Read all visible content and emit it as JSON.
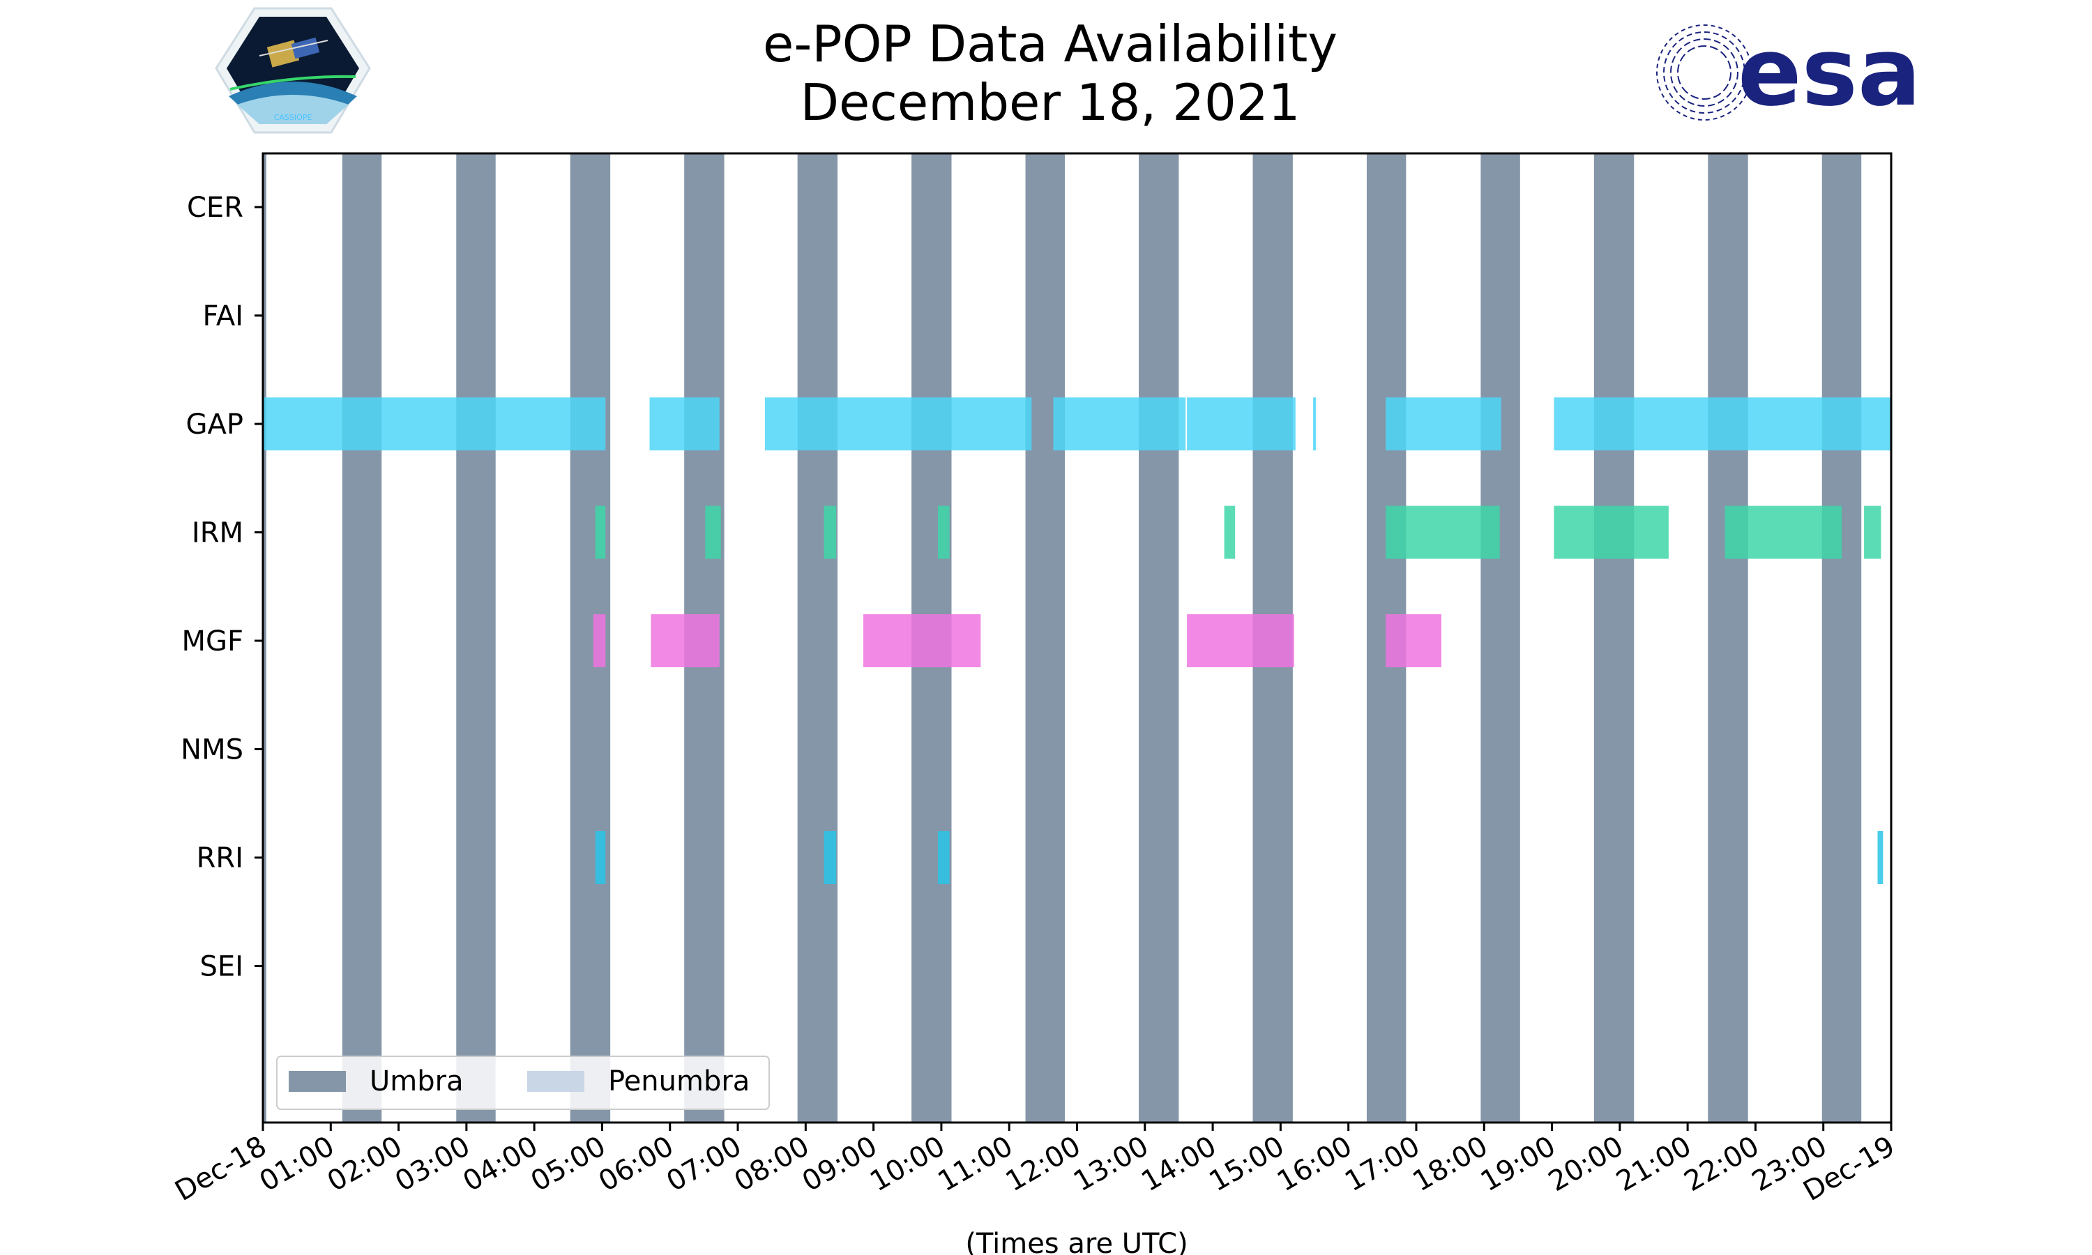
{
  "chart_data": {
    "type": "timeline",
    "title": [
      "e-POP Data Availability",
      "December 18, 2021"
    ],
    "xlabel": "(Times are UTC)",
    "ylabel": "",
    "x_unit": "hours UTC",
    "xlim": [
      0,
      24
    ],
    "x_ticks": [
      {
        "value": 0,
        "label": "Dec-18"
      },
      {
        "value": 1,
        "label": "01:00"
      },
      {
        "value": 2,
        "label": "02:00"
      },
      {
        "value": 3,
        "label": "03:00"
      },
      {
        "value": 4,
        "label": "04:00"
      },
      {
        "value": 5,
        "label": "05:00"
      },
      {
        "value": 6,
        "label": "06:00"
      },
      {
        "value": 7,
        "label": "07:00"
      },
      {
        "value": 8,
        "label": "08:00"
      },
      {
        "value": 9,
        "label": "09:00"
      },
      {
        "value": 10,
        "label": "10:00"
      },
      {
        "value": 11,
        "label": "11:00"
      },
      {
        "value": 12,
        "label": "12:00"
      },
      {
        "value": 13,
        "label": "13:00"
      },
      {
        "value": 14,
        "label": "14:00"
      },
      {
        "value": 15,
        "label": "15:00"
      },
      {
        "value": 16,
        "label": "16:00"
      },
      {
        "value": 17,
        "label": "17:00"
      },
      {
        "value": 18,
        "label": "18:00"
      },
      {
        "value": 19,
        "label": "19:00"
      },
      {
        "value": 20,
        "label": "20:00"
      },
      {
        "value": 21,
        "label": "21:00"
      },
      {
        "value": 22,
        "label": "22:00"
      },
      {
        "value": 23,
        "label": "23:00"
      },
      {
        "value": 24,
        "label": "Dec-19"
      }
    ],
    "categories": [
      "CER",
      "FAI",
      "GAP",
      "IRM",
      "MGF",
      "NMS",
      "RRI",
      "SEI"
    ],
    "umbra": [
      [
        0.0,
        0.05
      ],
      [
        1.17,
        1.75
      ],
      [
        2.85,
        3.43
      ],
      [
        4.53,
        5.12
      ],
      [
        6.21,
        6.8
      ],
      [
        7.88,
        8.47
      ],
      [
        9.56,
        10.15
      ],
      [
        11.24,
        11.82
      ],
      [
        12.91,
        13.5
      ],
      [
        14.59,
        15.18
      ],
      [
        16.27,
        16.85
      ],
      [
        17.95,
        18.53
      ],
      [
        19.62,
        20.21
      ],
      [
        21.3,
        21.89
      ],
      [
        22.98,
        23.56
      ]
    ],
    "legend": {
      "placement": "lower-left",
      "entries": [
        {
          "label": "Umbra",
          "color": "#8596a8"
        },
        {
          "label": "Penumbra",
          "color": "#c8d6e6"
        }
      ]
    },
    "series": [
      {
        "instrument": "CER",
        "color": "#4dd6f7",
        "segments": []
      },
      {
        "instrument": "FAI",
        "color": "#4dd6f7",
        "segments": []
      },
      {
        "instrument": "GAP",
        "color": "#4dd6f7",
        "segments": [
          [
            0.0,
            5.05
          ],
          [
            5.7,
            6.73
          ],
          [
            7.4,
            11.33
          ],
          [
            11.65,
            13.6
          ],
          [
            13.62,
            15.22
          ],
          [
            15.48,
            15.52
          ],
          [
            16.55,
            18.25
          ],
          [
            19.03,
            22.7
          ],
          [
            22.7,
            24.0
          ]
        ]
      },
      {
        "instrument": "IRM",
        "color": "#3ed6a8",
        "segments": [
          [
            4.9,
            5.05
          ],
          [
            6.52,
            6.75
          ],
          [
            8.27,
            8.45
          ],
          [
            9.95,
            10.12
          ],
          [
            14.17,
            14.33
          ],
          [
            16.55,
            18.23
          ],
          [
            19.03,
            20.72
          ],
          [
            21.55,
            23.27
          ],
          [
            23.6,
            23.85
          ]
        ]
      },
      {
        "instrument": "MGF",
        "color": "#ee74e0",
        "segments": [
          [
            4.87,
            5.05
          ],
          [
            5.72,
            6.73
          ],
          [
            8.85,
            10.58
          ],
          [
            13.62,
            15.2
          ],
          [
            16.55,
            17.37
          ]
        ]
      },
      {
        "instrument": "NMS",
        "color": "#29c4e6",
        "segments": []
      },
      {
        "instrument": "RRI",
        "color": "#29c4e6",
        "segments": [
          [
            4.9,
            5.05
          ],
          [
            8.27,
            8.45
          ],
          [
            9.95,
            10.12
          ],
          [
            23.8,
            23.88
          ]
        ]
      },
      {
        "instrument": "SEI",
        "color": "#29c4e6",
        "segments": []
      }
    ]
  },
  "logos": {
    "left": {
      "name": "cassiope-mission-patch",
      "text": "CASSIOPE"
    },
    "right": {
      "name": "esa-logo",
      "text": "esa",
      "color": "#1a237e"
    }
  }
}
